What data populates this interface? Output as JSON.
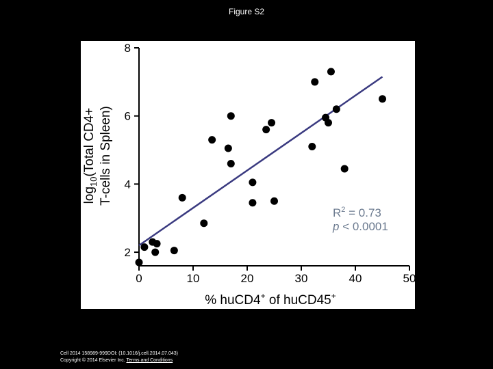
{
  "figure_title": "Figure S2",
  "footer": {
    "citation": "Cell 2014 158989-999DOI: (10.1016/j.cell.2014.07.043)",
    "copyright": "Copyright © 2014 Elsevier Inc.",
    "terms_link": "Terms and Conditions"
  },
  "chart_data": {
    "type": "scatter",
    "ylabel_line1_prefix": "log",
    "ylabel_subscript": "10",
    "ylabel_line1_suffix": "(Total CD4+",
    "ylabel_line2": "T-cells in Spleen)",
    "xlabel_prefix": "% huCD4",
    "xlabel_sup1": "+",
    "xlabel_middle": " of huCD45",
    "xlabel_sup2": "+",
    "xlim": [
      0,
      50
    ],
    "ylim": [
      1.6,
      8
    ],
    "x_ticks": [
      0,
      10,
      20,
      30,
      40,
      50
    ],
    "y_ticks": [
      2,
      4,
      6,
      8
    ],
    "grid": false,
    "colors": {
      "points": "#000000",
      "fit_line": "#3a3a80",
      "annotation": "#6b7a8f"
    },
    "annotation": {
      "r2_prefix": "R",
      "r2_sup": "2",
      "r2_value": " = 0.73",
      "p_symbol": "p",
      "p_value": " < 0.0001"
    },
    "fit_line": {
      "x": [
        0,
        45
      ],
      "y": [
        2.2,
        7.15
      ]
    },
    "points": [
      {
        "x": 0.0,
        "y": 1.7
      },
      {
        "x": 1.0,
        "y": 2.15
      },
      {
        "x": 2.5,
        "y": 2.3
      },
      {
        "x": 3.0,
        "y": 2.0
      },
      {
        "x": 3.3,
        "y": 2.25
      },
      {
        "x": 6.5,
        "y": 2.05
      },
      {
        "x": 8.0,
        "y": 3.6
      },
      {
        "x": 12.0,
        "y": 2.85
      },
      {
        "x": 13.5,
        "y": 5.3
      },
      {
        "x": 16.5,
        "y": 5.05
      },
      {
        "x": 17.0,
        "y": 6.0
      },
      {
        "x": 17.0,
        "y": 4.6
      },
      {
        "x": 21.0,
        "y": 4.05
      },
      {
        "x": 21.0,
        "y": 3.45
      },
      {
        "x": 23.5,
        "y": 5.6
      },
      {
        "x": 24.5,
        "y": 5.8
      },
      {
        "x": 25.0,
        "y": 3.5
      },
      {
        "x": 32.0,
        "y": 5.1
      },
      {
        "x": 32.5,
        "y": 7.0
      },
      {
        "x": 34.5,
        "y": 5.95
      },
      {
        "x": 35.0,
        "y": 5.8
      },
      {
        "x": 35.5,
        "y": 7.3
      },
      {
        "x": 36.5,
        "y": 6.2
      },
      {
        "x": 38.0,
        "y": 4.45
      },
      {
        "x": 45.0,
        "y": 6.5
      }
    ]
  }
}
